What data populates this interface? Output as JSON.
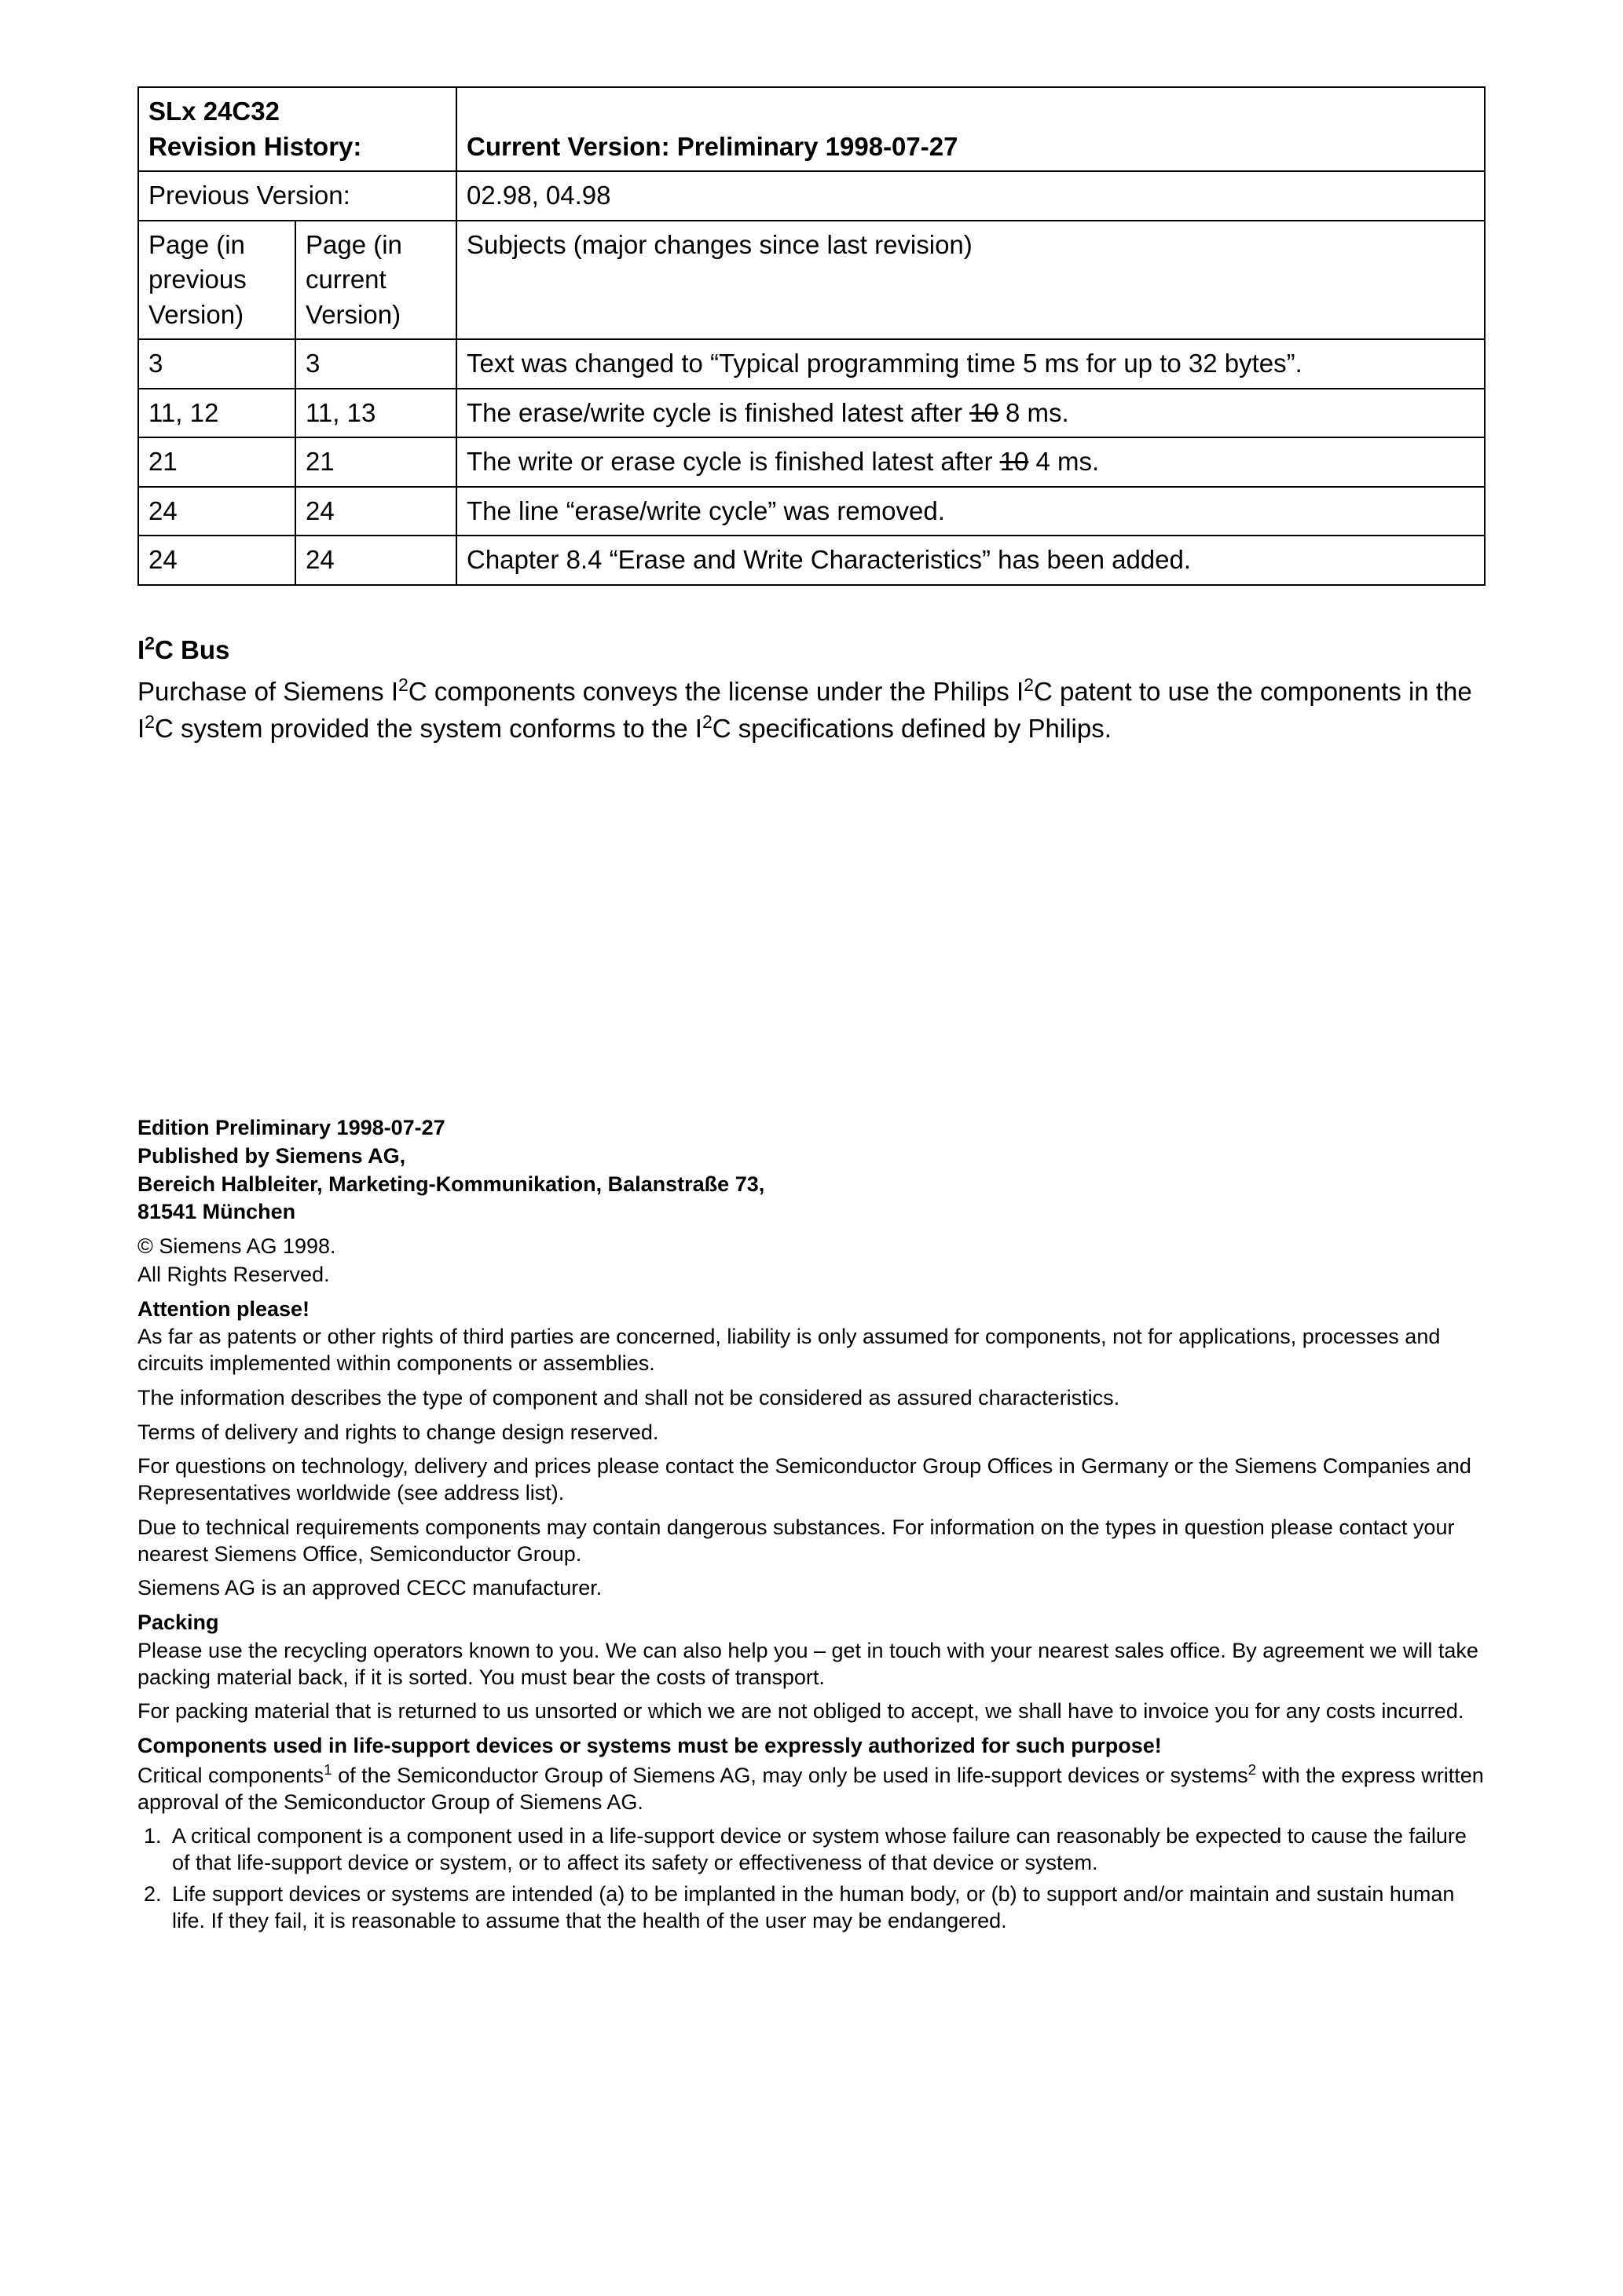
{
  "table": {
    "product": "SLx 24C32",
    "rev_history_label": "Revision History:",
    "current_version_label": "Current Version: Preliminary 1998-07-27",
    "prev_version_label": "Previous Version:",
    "prev_version_value": "02.98, 04.98",
    "col_prev": "Page\n(in previous Version)",
    "col_curr": "Page\n(in current Version)",
    "col_subj": "Subjects (major changes since last revision)",
    "rows": [
      {
        "prev": "3",
        "curr": "3",
        "subj_a": "Text was changed to “Typical programming time 5 ms for up to 32 bytes”."
      },
      {
        "prev": "11, 12",
        "curr": "11, 13",
        "subj_a": "The erase/write cycle is finished latest after ",
        "strike": "10",
        "subj_b": " 8 ms."
      },
      {
        "prev": "21",
        "curr": "21",
        "subj_a": "The write or erase cycle is finished latest after ",
        "strike": "10",
        "subj_b": " 4 ms."
      },
      {
        "prev": "24",
        "curr": "24",
        "subj_a": "The line “erase/write cycle” was removed."
      },
      {
        "prev": "24",
        "curr": "24",
        "subj_a": "Chapter 8.4 “Erase and Write Characteristics” has been added."
      }
    ]
  },
  "i2c": {
    "heading_a": "I",
    "heading_sup": "2",
    "heading_b": "C Bus",
    "p1_a": "Purchase of Siemens I",
    "p1_b": "C components conveys the license under the Philips I",
    "p1_c": "C patent to use the components in the I",
    "p1_d": "C system provided the system conforms to the I",
    "p1_e": "C specifications defined by Philips."
  },
  "legal": {
    "edition": "Edition Preliminary 1998-07-27",
    "pub1": "Published by Siemens AG,",
    "pub2": "Bereich Halbleiter, Marketing-Kommunikation, Balanstraße 73,",
    "pub3": "81541 München",
    "copyright": "© Siemens AG 1998.",
    "rights": "All Rights Reserved.",
    "attn": "Attention please!",
    "attn_p1": "As far as patents or other rights of third parties are concerned, liability is only assumed for components, not for applications, processes and circuits implemented within components or assemblies.",
    "attn_p2": "The information describes the type of component and shall not be considered as assured characteristics.",
    "attn_p3": "Terms of delivery and rights to change design reserved.",
    "attn_p4": "For questions on technology, delivery and prices please contact the Semiconductor Group Offices in Germany or the Siemens Companies and Representatives worldwide (see address list).",
    "attn_p5": "Due to technical requirements components may contain dangerous substances. For information on the types in question please contact your nearest Siemens Office, Semiconductor Group.",
    "attn_p6": "Siemens AG is an approved CECC manufacturer.",
    "packing": "Packing",
    "pack_p1": "Please use the recycling operators known to you. We can also help you – get in touch with your nearest sales office. By agreement we will take packing material back, if it is sorted. You must bear the costs of transport.",
    "pack_p2": "For packing material that is returned to us unsorted or which we are not obliged to accept, we shall have to invoice you for any costs incurred.",
    "life_hdr": "Components used in life-support devices or systems must be expressly authorized for such purpose!",
    "life_p_a": "Critical components",
    "life_p_b": " of the Semiconductor Group of Siemens AG, may only be used in life-support devices or systems",
    "life_p_c": " with the express written approval of the Semiconductor Group of Siemens AG.",
    "fn1": "A critical component is a component used in a life-support device or system whose failure can reasonably be expected to cause the failure of that life-support device or system, or to affect its safety or effectiveness of that device or system.",
    "fn2": "Life support devices or systems are intended (a) to be implanted in the human body, or (b) to support and/or maintain and sustain human life. If they fail, it is reasonable to assume that the health of the user may be endangered."
  }
}
